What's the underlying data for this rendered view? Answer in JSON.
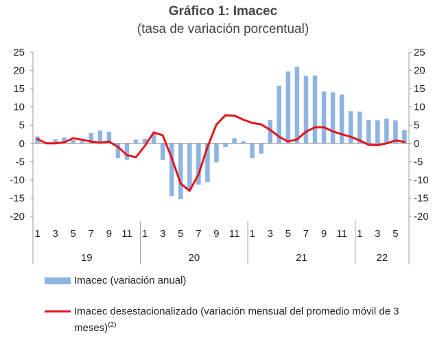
{
  "title": "Gráfico 1: Imacec",
  "subtitle": "(tasa de variación porcentual)",
  "chart_data": {
    "type": "bar+line",
    "title": "Gráfico 1: Imacec",
    "subtitle": "(tasa de variación porcentual)",
    "ylim": [
      -20,
      25
    ],
    "yticks": [
      25,
      20,
      15,
      10,
      5,
      0,
      -5,
      -10,
      -15,
      -20
    ],
    "month_labels": [
      "1",
      "",
      "3",
      "",
      "5",
      "",
      "7",
      "",
      "9",
      "",
      "11",
      "",
      "1",
      "",
      "3",
      "",
      "5",
      "",
      "7",
      "",
      "9",
      "",
      "11",
      "",
      "1",
      "",
      "3",
      "",
      "5",
      "",
      "7",
      "",
      "9",
      "",
      "11",
      "",
      "1",
      "",
      "3",
      "",
      "5",
      ""
    ],
    "year_groups": [
      {
        "label": "19",
        "start": 0,
        "count": 12
      },
      {
        "label": "20",
        "start": 12,
        "count": 12
      },
      {
        "label": "21",
        "start": 24,
        "count": 12
      },
      {
        "label": "22",
        "start": 36,
        "count": 6
      }
    ],
    "series": [
      {
        "name": "Imacec (variación anual)",
        "type": "bar",
        "color": "#8eb4e3",
        "values": [
          1.9,
          0.4,
          1.1,
          1.6,
          0.9,
          0.6,
          2.8,
          3.5,
          3.2,
          -4.0,
          -4.5,
          1.0,
          1.3,
          2.6,
          -4.6,
          -14.5,
          -15.3,
          -12.8,
          -11.3,
          -10.6,
          -5.2,
          -1.0,
          1.4,
          0.6,
          -4.0,
          -2.8,
          6.4,
          15.8,
          19.7,
          21.0,
          18.5,
          18.6,
          14.2,
          14.0,
          13.4,
          8.8,
          8.7,
          6.4,
          6.3,
          6.8,
          6.3,
          3.7
        ]
      },
      {
        "name": "Imacec desestacionalizado (variación mensual del promedio móvil de 3 meses)",
        "name_superscript": "(2)",
        "type": "line",
        "color": "#e3141b",
        "values": [
          1.2,
          0.0,
          0.0,
          0.3,
          1.4,
          1.0,
          0.5,
          0.2,
          0.5,
          -1.0,
          -3.2,
          -3.8,
          -0.7,
          3.0,
          2.2,
          -4.0,
          -11.0,
          -13.0,
          -8.5,
          -1.0,
          5.2,
          7.7,
          7.6,
          6.5,
          5.6,
          5.2,
          3.7,
          1.8,
          0.5,
          1.1,
          3.2,
          4.4,
          4.4,
          3.3,
          2.5,
          1.8,
          0.8,
          -0.4,
          -0.5,
          0.0,
          0.8,
          0.4
        ]
      }
    ]
  },
  "legend": {
    "bar_label": "Imacec (variación anual)",
    "line_label_line1": "Imacec desestacionalizado (variación mensual del promedio móvil de 3",
    "line_label_line2": "meses)",
    "line_label_sup": "(2)"
  },
  "colors": {
    "bar": "#8eb4e3",
    "line": "#e3141b",
    "axis": "#9a9a9a"
  }
}
